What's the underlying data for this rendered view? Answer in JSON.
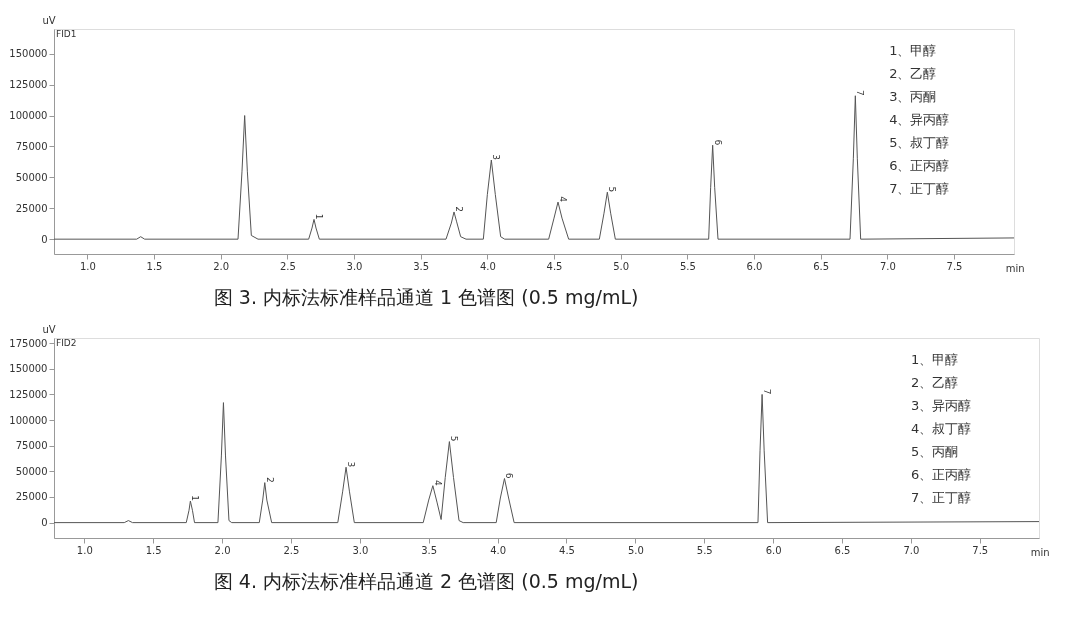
{
  "chart_data": [
    {
      "type": "line",
      "title": "图 3. 内标法标准样品通道 1 色谱图 (0.5 mg/mL)",
      "xlabel": "min",
      "ylabel": "uV",
      "xlim": [
        0.75,
        7.95
      ],
      "ylim": [
        -12000,
        170000
      ],
      "xticks": [
        {
          "value": 1,
          "label": "1.0"
        },
        1.5,
        {
          "value": 2,
          "label": "2.0"
        },
        2.5,
        {
          "value": 3,
          "label": "3.0"
        },
        3.5,
        {
          "value": 4,
          "label": "4.0"
        },
        4.5,
        {
          "value": 5,
          "label": "5.0"
        },
        5.5,
        {
          "value": 6,
          "label": "6.0"
        },
        6.5,
        {
          "value": 7,
          "label": "7.0"
        },
        7.5
      ],
      "yticks": [
        0,
        25000,
        50000,
        75000,
        100000,
        125000,
        150000
      ],
      "grid": false,
      "series": [
        {
          "color": "#555555",
          "x": [
            0.75,
            1.37,
            1.4,
            1.43,
            2.13,
            2.16,
            2.18,
            2.2,
            2.23,
            2.28,
            2.66,
            2.685,
            2.7,
            2.715,
            2.74,
            3.69,
            3.73,
            3.75,
            3.77,
            3.8,
            3.84,
            3.97,
            4.0,
            4.03,
            4.06,
            4.1,
            4.13,
            4.46,
            4.5,
            4.53,
            4.56,
            4.61,
            4.84,
            4.875,
            4.9,
            4.925,
            4.96,
            5.66,
            5.675,
            5.69,
            5.705,
            5.73,
            6.72,
            6.745,
            6.76,
            6.775,
            6.8,
            7.95
          ],
          "values": [
            0,
            0,
            2000,
            0,
            0,
            55000,
            100000,
            55000,
            3000,
            0,
            0,
            9000,
            16000,
            9000,
            0,
            0,
            13000,
            22000,
            14000,
            2000,
            0,
            0,
            36000,
            64000,
            36000,
            2000,
            0,
            0,
            17000,
            30000,
            17000,
            0,
            0,
            21000,
            38000,
            21000,
            0,
            0,
            42000,
            76000,
            42000,
            0,
            0,
            65000,
            116000,
            65000,
            0,
            1000
          ]
        }
      ],
      "annotations": [
        "FID1",
        {
          "text": "1",
          "x": 2.7,
          "y": 16000
        },
        {
          "text": "2",
          "x": 3.75,
          "y": 22000
        },
        {
          "text": "3",
          "x": 4.03,
          "y": 64000
        },
        {
          "text": "4",
          "x": 4.53,
          "y": 30000
        },
        {
          "text": "5",
          "x": 4.9,
          "y": 38000
        },
        {
          "text": "6",
          "x": 5.69,
          "y": 76000
        },
        {
          "text": "7",
          "x": 6.76,
          "y": 116000
        },
        "1、甲醇",
        "2、乙醇",
        "3、丙酮",
        "4、异丙醇",
        "5、叔丁醇",
        "6、正丙醇",
        "7、正丁醇"
      ]
    },
    {
      "type": "line",
      "title": "图 4. 内标法标准样品通道 2 色谱图 (0.5 mg/mL)",
      "xlabel": "min",
      "ylabel": "uV",
      "xlim": [
        0.78,
        7.93
      ],
      "ylim": [
        -15000,
        180000
      ],
      "xticks": [
        {
          "value": 1,
          "label": "1.0"
        },
        1.5,
        {
          "value": 2,
          "label": "2.0"
        },
        2.5,
        {
          "value": 3,
          "label": "3.0"
        },
        3.5,
        {
          "value": 4,
          "label": "4.0"
        },
        4.5,
        {
          "value": 5,
          "label": "5.0"
        },
        5.5,
        {
          "value": 6,
          "label": "6.0"
        },
        6.5,
        {
          "value": 7,
          "label": "7.0"
        },
        7.5
      ],
      "yticks": [
        0,
        25000,
        50000,
        75000,
        100000,
        125000,
        150000,
        175000
      ],
      "grid": false,
      "series": [
        {
          "color": "#555555",
          "x": [
            0.78,
            1.29,
            1.32,
            1.35,
            1.74,
            1.76,
            1.77,
            1.785,
            1.8,
            1.97,
            1.995,
            2.01,
            2.025,
            2.05,
            2.07,
            2.27,
            2.295,
            2.31,
            2.325,
            2.36,
            2.84,
            2.875,
            2.9,
            2.925,
            2.96,
            3.46,
            3.5,
            3.53,
            3.56,
            3.59,
            3.62,
            3.65,
            3.68,
            3.72,
            3.75,
            3.99,
            4.02,
            4.05,
            4.08,
            4.12,
            5.89,
            5.905,
            5.92,
            5.935,
            5.96,
            7.93
          ],
          "values": [
            0,
            0,
            2000,
            0,
            0,
            12000,
            21000,
            12000,
            0,
            0,
            65000,
            117000,
            65000,
            2000,
            0,
            0,
            22000,
            39000,
            22000,
            0,
            0,
            30000,
            54000,
            30000,
            0,
            0,
            22000,
            36000,
            20000,
            3000,
            44000,
            79000,
            44000,
            2000,
            0,
            0,
            24000,
            43000,
            24000,
            0,
            0,
            70000,
            125000,
            70000,
            0,
            1000
          ]
        }
      ],
      "annotations": [
        "FID2",
        {
          "text": "1",
          "x": 1.77,
          "y": 21000
        },
        {
          "text": "2",
          "x": 2.31,
          "y": 39000
        },
        {
          "text": "3",
          "x": 2.9,
          "y": 54000
        },
        {
          "text": "4",
          "x": 3.53,
          "y": 36000
        },
        {
          "text": "5",
          "x": 3.65,
          "y": 79000
        },
        {
          "text": "6",
          "x": 4.05,
          "y": 43000
        },
        {
          "text": "7",
          "x": 5.92,
          "y": 125000
        },
        "1、甲醇",
        "2、乙醇",
        "3、异丙醇",
        "4、叔丁醇",
        "5、丙酮",
        "6、正丙醇",
        "7、正丁醇"
      ]
    }
  ]
}
